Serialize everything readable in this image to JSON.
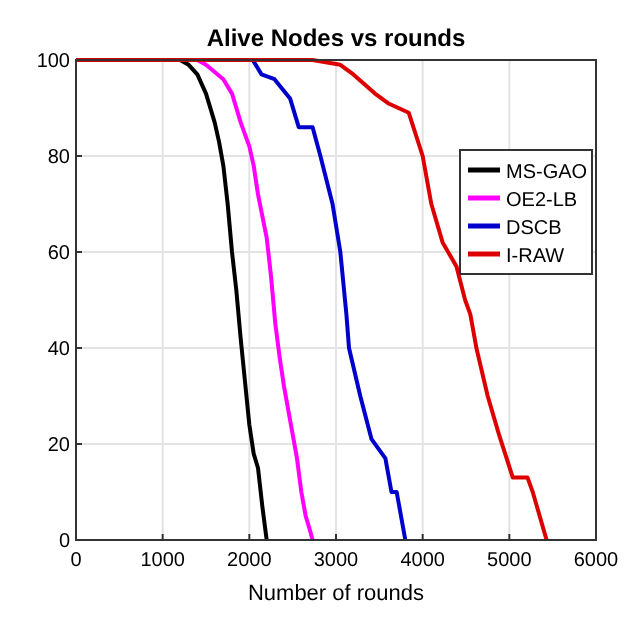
{
  "chart_data": {
    "type": "line",
    "title": "Alive Nodes vs rounds",
    "xlabel": "Number of rounds",
    "xlim": [
      0,
      6000
    ],
    "xticks": [
      0,
      1000,
      2000,
      3000,
      4000,
      5000,
      6000
    ],
    "ylim": [
      0,
      100
    ],
    "yticks": [
      0,
      20,
      40,
      60,
      80,
      100
    ],
    "grid": true,
    "legend": "right",
    "marker": "none",
    "line_style": "solid",
    "series": [
      {
        "name": "MS-GAO",
        "color": "#000000",
        "x": [
          0,
          1200,
          1300,
          1400,
          1500,
          1600,
          1650,
          1700,
          1750,
          1800,
          1850,
          1900,
          1950,
          2000,
          2050,
          2100,
          2150,
          2200
        ],
        "values": [
          100,
          100,
          99,
          97,
          93,
          87,
          83,
          78,
          70,
          60,
          52,
          42,
          33,
          24,
          18,
          15,
          7,
          0
        ]
      },
      {
        "name": "OE2-LB",
        "color": "#ff00ff",
        "x": [
          0,
          1400,
          1500,
          1700,
          1800,
          1900,
          2000,
          2050,
          2100,
          2200,
          2250,
          2300,
          2350,
          2400,
          2450,
          2500,
          2550,
          2600,
          2650,
          2700,
          2730
        ],
        "values": [
          100,
          100,
          99,
          96,
          93,
          87,
          82,
          78,
          72,
          63,
          55,
          45,
          38,
          32,
          27,
          22,
          17,
          10,
          5,
          2,
          0
        ]
      },
      {
        "name": "DSCB",
        "color": "#0000cc",
        "x": [
          0,
          2040,
          2140,
          2290,
          2470,
          2570,
          2730,
          2820,
          2960,
          3050,
          3120,
          3150,
          3280,
          3410,
          3570,
          3640,
          3700,
          3800
        ],
        "values": [
          100,
          100,
          97,
          96,
          92,
          86,
          86,
          80,
          70,
          60,
          47,
          40,
          30,
          21,
          17,
          10,
          10,
          0
        ]
      },
      {
        "name": "I-RAW",
        "color": "#dd0000",
        "x": [
          0,
          2730,
          3050,
          3200,
          3450,
          3600,
          3840,
          4000,
          4100,
          4230,
          4390,
          4490,
          4550,
          4620,
          4750,
          4880,
          5040,
          5210,
          5270,
          5430
        ],
        "values": [
          100,
          100,
          99,
          97,
          93,
          91,
          89,
          80,
          70,
          62,
          57,
          50,
          47,
          40,
          30,
          22,
          13,
          13,
          10,
          0
        ]
      }
    ]
  }
}
